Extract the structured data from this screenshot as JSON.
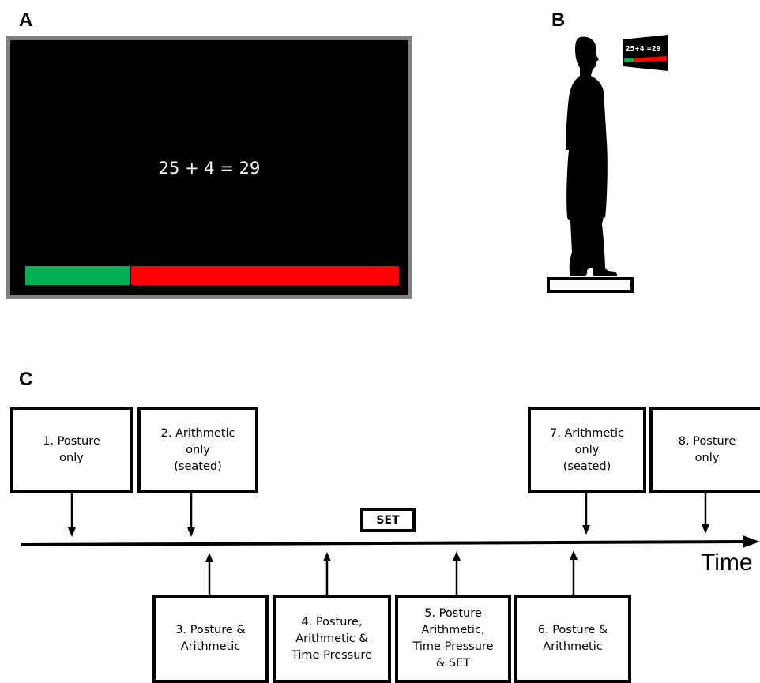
{
  "panels": {
    "a": "A",
    "b": "B",
    "c": "C"
  },
  "screen": {
    "equation": "25 + 4 = 29",
    "mini_equation": "25+4 =29",
    "timer_elapsed_fraction": 0.28,
    "colors": {
      "elapsed": "#00b050",
      "remaining": "#ff0000",
      "bezel": "#7f7f7f"
    }
  },
  "timeline": {
    "axis_label": "Time",
    "set_label": "SET",
    "conditions_above": [
      {
        "label": "1. Posture\nonly"
      },
      {
        "label": "2. Arithmetic\nonly\n(seated)"
      },
      {
        "label": "7. Arithmetic\nonly\n(seated)"
      },
      {
        "label": "8. Posture\nonly"
      }
    ],
    "conditions_below": [
      {
        "label": "3. Posture &\nArithmetic"
      },
      {
        "label": "4. Posture,\nArithmetic &\nTime Pressure"
      },
      {
        "label": "5. Posture\nArithmetic,\nTime Pressure\n& SET"
      },
      {
        "label": "6. Posture &\nArithmetic"
      }
    ]
  }
}
